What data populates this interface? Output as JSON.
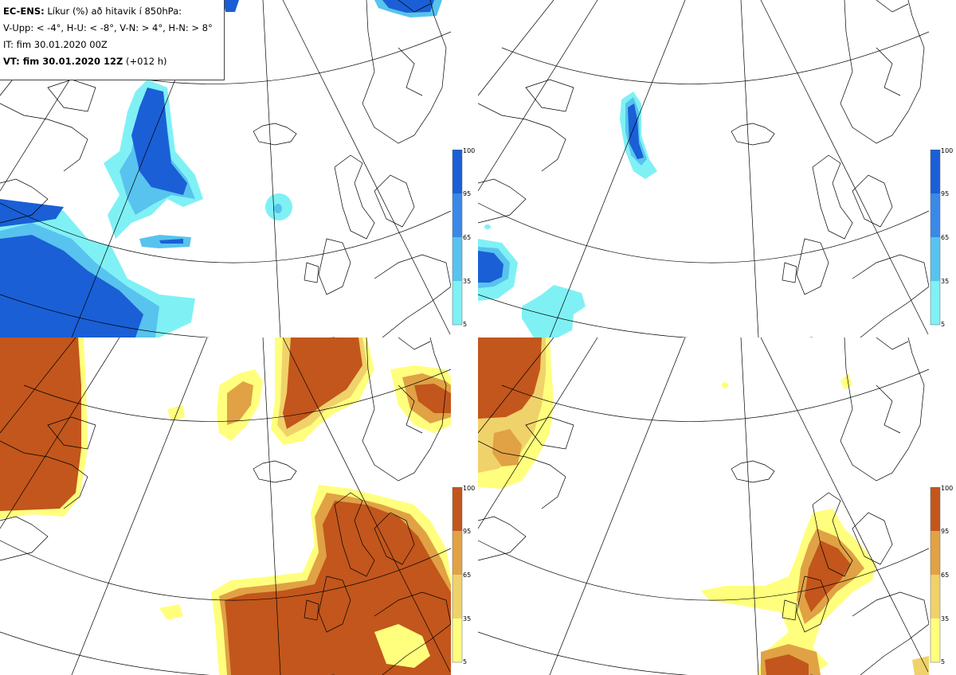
{
  "header": {
    "model": "EC-ENS:",
    "title_rest": " Líkur (%) að hitavik í 850hPa:",
    "thresholds": "V-Upp: < -4°, H-U: < -8°, V-N: > 4°, H-N: > 8°",
    "init_time": "IT: fim 30.01.2020 00Z",
    "valid_time": "VT: fim 30.01.2020 12Z",
    "lead": " (+012 h)"
  },
  "panels": [
    {
      "id": "v-upp",
      "quadrant": "top-left",
      "scheme": "cold"
    },
    {
      "id": "h-upp",
      "quadrant": "top-right",
      "scheme": "cold"
    },
    {
      "id": "v-nid",
      "quadrant": "bottom-left",
      "scheme": "warm"
    },
    {
      "id": "h-nid",
      "quadrant": "bottom-right",
      "scheme": "warm"
    }
  ],
  "colorbar": {
    "ticks": [
      "100",
      "95",
      "65",
      "35",
      "5"
    ],
    "cold_colors": [
      "#1a5fd6",
      "#3a88e8",
      "#58c3ee",
      "#7ff1f5"
    ],
    "warm_colors": [
      "#c2561c",
      "#e0a244",
      "#f0d26a",
      "#ffff7d"
    ]
  }
}
